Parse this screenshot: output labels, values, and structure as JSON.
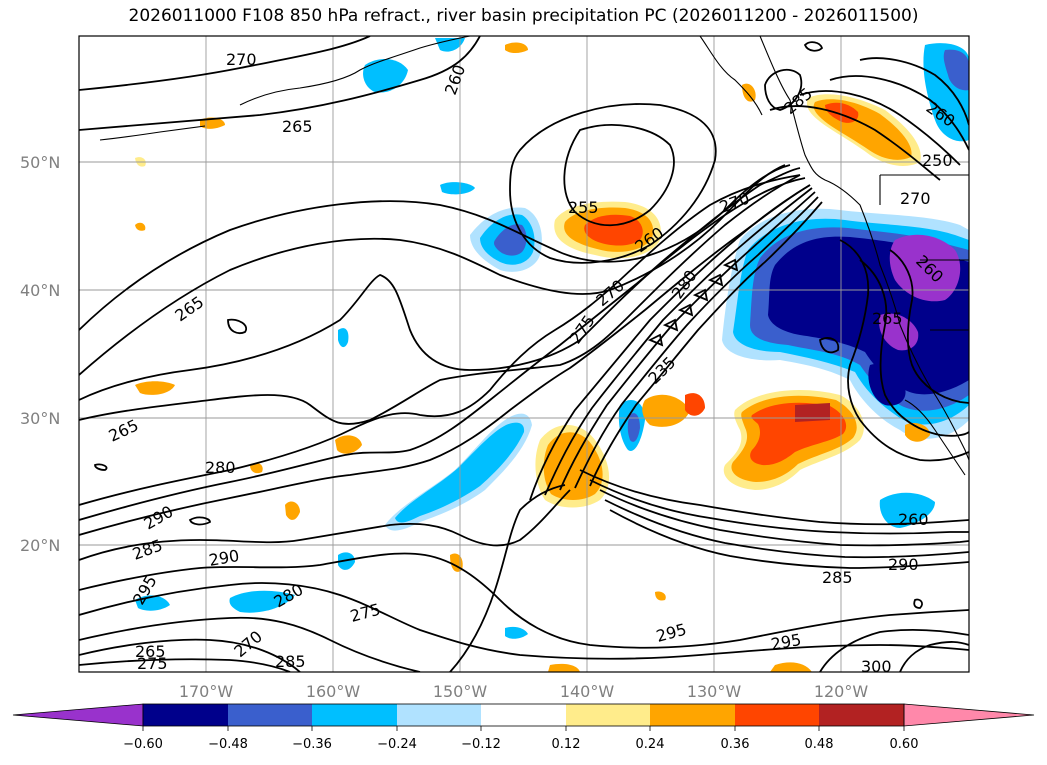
{
  "title": "2026011000 F108 850 hPa refract., river basin precipitation PC (2026011200 - 2026011500)",
  "map": {
    "lat_labels": [
      "50°N",
      "40°N",
      "30°N",
      "20°N"
    ],
    "lon_labels": [
      "170°W",
      "160°W",
      "150°W",
      "140°W",
      "130°W",
      "120°W"
    ],
    "contour_labels": [
      "270",
      "260",
      "265",
      "285",
      "260",
      "250",
      "255",
      "260",
      "270",
      "270",
      "270",
      "265",
      "275",
      "280",
      "260",
      "265",
      "235",
      "265",
      "280",
      "290",
      "285",
      "290",
      "260",
      "295",
      "280",
      "275",
      "290",
      "285",
      "295",
      "295",
      "265",
      "270",
      "275",
      "285",
      "300"
    ]
  },
  "colorbar": {
    "ticks": [
      "−0.60",
      "−0.48",
      "−0.36",
      "−0.24",
      "−0.12",
      "0.12",
      "0.24",
      "0.36",
      "0.48",
      "0.60"
    ],
    "colors": [
      "#9932cc",
      "#00008b",
      "#3a5fcd",
      "#00bfff",
      "#b0e2ff",
      "#ffffff",
      "#ffec8b",
      "#ffa500",
      "#ff4500",
      "#b22222",
      "#ff88aa"
    ]
  }
}
